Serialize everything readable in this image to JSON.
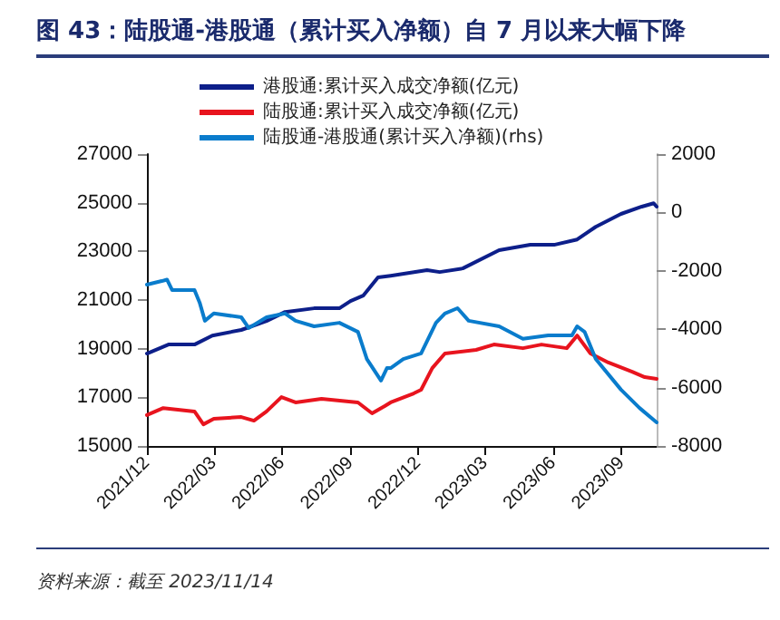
{
  "chart_data": {
    "type": "line",
    "title": "图 43：陆股通-港股通（累计买入净额）自 7 月以来大幅下降",
    "annotations": [
      "资料来源：截至 2023/11/14"
    ],
    "xlim": [
      "2021-12-01",
      "2023-10-18"
    ],
    "xticks": [
      {
        "value": "2021-12-01",
        "label": "2021/12"
      },
      {
        "value": "2022-03-01",
        "label": "2022/03"
      },
      {
        "value": "2022-06-01",
        "label": "2022/06"
      },
      {
        "value": "2022-09-01",
        "label": "2022/09"
      },
      {
        "value": "2022-12-01",
        "label": "2022/12"
      },
      {
        "value": "2023-03-01",
        "label": "2023/03"
      },
      {
        "value": "2023-06-01",
        "label": "2023/06"
      },
      {
        "value": "2023-09-01",
        "label": "2023/09"
      }
    ],
    "ylim": [
      15000,
      27000
    ],
    "yticks": [
      15000,
      17000,
      19000,
      21000,
      23000,
      25000,
      27000
    ],
    "y2lim": [
      -8000,
      2000
    ],
    "y2ticks": [
      -8000,
      -6000,
      -4000,
      -2000,
      0,
      2000
    ],
    "grid": false,
    "legend": "top",
    "marker": "none",
    "line_style": "solid",
    "series": [
      {
        "name": "港股通:累计买入成交净额(亿元)",
        "color": "#0d1f8a",
        "x": [
          "2021-12-01",
          "2021-12-30",
          "2022-02-03",
          "2022-02-27",
          "2022-04-07",
          "2022-05-11",
          "2022-06-05",
          "2022-07-14",
          "2022-08-17",
          "2022-09-01",
          "2022-09-18",
          "2022-10-08",
          "2022-10-25",
          "2022-12-13",
          "2022-12-30",
          "2023-01-30",
          "2023-03-20",
          "2023-05-01",
          "2023-06-02",
          "2023-07-03",
          "2023-07-28",
          "2023-08-31",
          "2023-09-28",
          "2023-10-14",
          "2023-10-18"
        ],
        "values": [
          18800,
          19170,
          19170,
          19540,
          19770,
          20140,
          20510,
          20660,
          20660,
          20960,
          21180,
          21930,
          22000,
          22230,
          22150,
          22300,
          23050,
          23270,
          23270,
          23490,
          24010,
          24540,
          24840,
          24980,
          24840
        ]
      },
      {
        "name": "陆股通:累计买入成交净额(亿元)",
        "color": "#e8141e",
        "x": [
          "2021-12-01",
          "2021-12-23",
          "2022-02-03",
          "2022-02-15",
          "2022-03-01",
          "2022-04-07",
          "2022-04-24",
          "2022-05-11",
          "2022-05-31",
          "2022-06-19",
          "2022-07-24",
          "2022-09-11",
          "2022-09-30",
          "2022-10-17",
          "2022-10-25",
          "2022-11-25",
          "2022-12-05",
          "2022-12-20",
          "2023-01-06",
          "2023-02-17",
          "2023-03-13",
          "2023-04-21",
          "2023-05-16",
          "2023-06-19",
          "2023-07-03",
          "2023-07-21",
          "2023-08-14",
          "2023-09-15",
          "2023-10-02",
          "2023-10-18"
        ],
        "values": [
          16270,
          16560,
          16420,
          15890,
          16120,
          16190,
          16040,
          16420,
          17010,
          16790,
          16940,
          16790,
          16340,
          16640,
          16790,
          17160,
          17310,
          18200,
          18800,
          18950,
          19170,
          19020,
          19170,
          19020,
          19540,
          18800,
          18430,
          18050,
          17830,
          17760
        ]
      },
      {
        "name": "陆股通-港股通(累计买入净额)(rhs)",
        "color": "#0a7ccc",
        "axis": "y2",
        "x": [
          "2021-12-01",
          "2021-12-21",
          "2021-12-28",
          "2022-01-04",
          "2022-02-03",
          "2022-02-10",
          "2022-02-17",
          "2022-03-01",
          "2022-04-07",
          "2022-04-17",
          "2022-05-11",
          "2022-06-05",
          "2022-06-19",
          "2022-07-14",
          "2022-08-17",
          "2022-09-11",
          "2022-09-23",
          "2022-10-12",
          "2022-10-20",
          "2022-10-25",
          "2022-11-11",
          "2022-12-05",
          "2022-12-25",
          "2023-01-06",
          "2023-01-23",
          "2023-02-07",
          "2023-03-20",
          "2023-04-21",
          "2023-05-25",
          "2023-06-26",
          "2023-07-03",
          "2023-07-13",
          "2023-07-28",
          "2023-08-31",
          "2023-09-25",
          "2023-10-18"
        ],
        "values": [
          -2470,
          -2350,
          -2300,
          -2660,
          -2660,
          -3090,
          -3710,
          -3460,
          -3590,
          -3960,
          -3590,
          -3460,
          -3710,
          -3900,
          -3780,
          -4090,
          -5020,
          -5760,
          -5330,
          -5330,
          -5020,
          -4830,
          -3780,
          -3460,
          -3280,
          -3710,
          -3900,
          -4330,
          -4210,
          -4210,
          -3900,
          -4090,
          -5020,
          -6070,
          -6700,
          -7190
        ]
      }
    ]
  }
}
